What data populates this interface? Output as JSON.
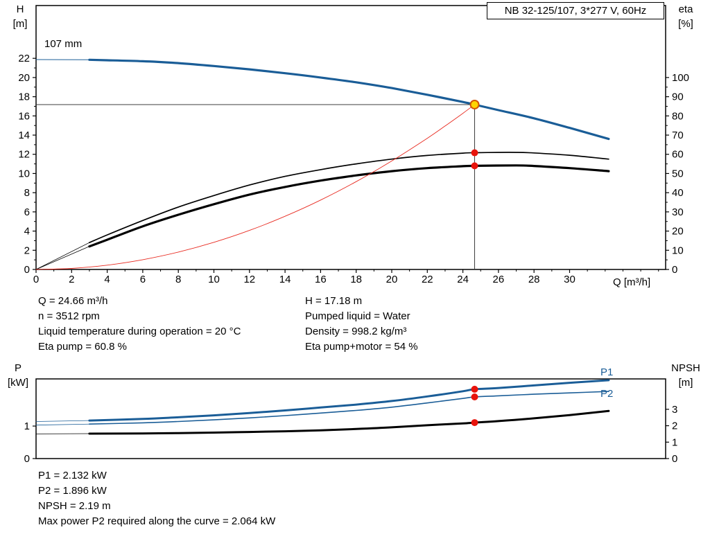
{
  "header": {
    "title_box": "NB 32-125/107, 3*277 V, 60Hz"
  },
  "labels": {
    "top_left_1": "H",
    "top_left_2": "[m]",
    "top_right_1": "eta",
    "top_right_2": "[%]",
    "x_axis": "Q [m³/h]",
    "curve_size": "107 mm",
    "bottom_left_1": "P",
    "bottom_left_2": "[kW]",
    "bottom_right_1": "NPSH",
    "bottom_right_2": "[m]",
    "p1": "P1",
    "p2": "P2"
  },
  "info": {
    "left": [
      "Q = 24.66 m³/h",
      "n = 3512 rpm",
      "Liquid temperature during operation = 20 °C",
      "Eta pump = 60.8 %"
    ],
    "right": [
      "H = 17.18 m",
      "Pumped liquid = Water",
      "Density = 998.2 kg/m³",
      "Eta pump+motor = 54 %"
    ]
  },
  "footer": {
    "lines": [
      "P1 = 2.132 kW",
      "P2 = 1.896 kW",
      "NPSH = 2.19 m",
      "Max power P2 required along the curve = 2.064 kW"
    ]
  },
  "colors": {
    "blue": "#1a5d97",
    "black": "#000000",
    "red": "#e8291f",
    "dot_red": "#e8140c",
    "duty_fill": "#ffd500",
    "duty_stroke": "#d35400",
    "crosshair": "#3c3c3c"
  },
  "chart_data": [
    {
      "type": "line",
      "title": "NB 32-125/107, 3*277 V, 60Hz",
      "xlabel": "Q [m³/h]",
      "ylabel_left": "H [m]",
      "ylabel_right": "eta [%]",
      "xlim": [
        0,
        35.4
      ],
      "x_ticks": [
        0,
        2,
        4,
        6,
        8,
        10,
        12,
        14,
        16,
        18,
        20,
        22,
        24,
        26,
        28,
        30
      ],
      "x_minor_step": 1,
      "ylim_left": [
        0,
        27.5
      ],
      "y_ticks_left": [
        0,
        2,
        4,
        6,
        8,
        10,
        12,
        14,
        16,
        18,
        20,
        22
      ],
      "y_left_minor_step": 1,
      "ylim_right": [
        0,
        137.5
      ],
      "y_ticks_right": [
        0,
        10,
        20,
        30,
        40,
        50,
        60,
        70,
        80,
        90,
        100
      ],
      "y_right_minor_step": 5,
      "duty": {
        "q": 24.66,
        "h": 17.18
      },
      "series": [
        {
          "name": "qh-107mm-lead",
          "axis": "left",
          "color": "blue",
          "width": 1,
          "points": [
            [
              0,
              21.87
            ],
            [
              3,
              21.85
            ]
          ]
        },
        {
          "name": "qh-107mm",
          "axis": "left",
          "color": "blue",
          "width": 3.2,
          "points": [
            [
              3,
              21.85
            ],
            [
              4,
              21.8
            ],
            [
              6,
              21.7
            ],
            [
              8,
              21.5
            ],
            [
              10,
              21.2
            ],
            [
              12,
              20.85
            ],
            [
              14,
              20.45
            ],
            [
              16,
              20.0
            ],
            [
              18,
              19.5
            ],
            [
              20,
              18.9
            ],
            [
              22,
              18.2
            ],
            [
              24,
              17.45
            ],
            [
              24.66,
              17.18
            ],
            [
              26,
              16.6
            ],
            [
              28,
              15.75
            ],
            [
              30,
              14.75
            ],
            [
              32.2,
              13.6
            ]
          ]
        },
        {
          "name": "eta-pump-lead",
          "axis": "right",
          "color": "black",
          "width": 0.8,
          "points": [
            [
              0,
              0
            ],
            [
              3,
              14
            ]
          ]
        },
        {
          "name": "eta-pump",
          "axis": "right",
          "color": "black",
          "width": 1.7,
          "points": [
            [
              3,
              14
            ],
            [
              4,
              18
            ],
            [
              6,
              25.5
            ],
            [
              8,
              32.5
            ],
            [
              10,
              38.5
            ],
            [
              12,
              44
            ],
            [
              14,
              48.5
            ],
            [
              16,
              52
            ],
            [
              18,
              55
            ],
            [
              20,
              57.5
            ],
            [
              22,
              59.4
            ],
            [
              24,
              60.6
            ],
            [
              24.66,
              60.8
            ],
            [
              26,
              61
            ],
            [
              27,
              61
            ],
            [
              28,
              60.7
            ],
            [
              30,
              59.5
            ],
            [
              32.2,
              57.5
            ]
          ]
        },
        {
          "name": "eta-pump-motor-lead",
          "axis": "right",
          "color": "black",
          "width": 0.8,
          "points": [
            [
              0,
              0
            ],
            [
              3,
              12
            ]
          ]
        },
        {
          "name": "eta-pump-motor",
          "axis": "right",
          "color": "black",
          "width": 3.2,
          "points": [
            [
              3,
              12
            ],
            [
              4,
              15.5
            ],
            [
              6,
              22.5
            ],
            [
              8,
              28.5
            ],
            [
              10,
              34
            ],
            [
              12,
              39
            ],
            [
              14,
              43
            ],
            [
              16,
              46.3
            ],
            [
              18,
              49
            ],
            [
              20,
              51.2
            ],
            [
              22,
              52.8
            ],
            [
              24,
              53.8
            ],
            [
              24.66,
              54
            ],
            [
              27,
              54.2
            ],
            [
              28,
              53.9
            ],
            [
              30,
              52.8
            ],
            [
              32.2,
              51.2
            ]
          ]
        },
        {
          "name": "system-curve",
          "axis": "left",
          "color": "red",
          "width": 0.9,
          "points": [
            [
              0,
              0
            ],
            [
              2,
              0.11
            ],
            [
              4,
              0.45
            ],
            [
              6,
              1.02
            ],
            [
              8,
              1.81
            ],
            [
              10,
              2.83
            ],
            [
              12,
              4.07
            ],
            [
              14,
              5.54
            ],
            [
              16,
              7.23
            ],
            [
              18,
              9.15
            ],
            [
              20,
              11.3
            ],
            [
              22,
              13.67
            ],
            [
              23,
              14.95
            ],
            [
              24,
              16.27
            ],
            [
              24.66,
              17.18
            ]
          ]
        }
      ],
      "markers": [
        {
          "name": "duty-point",
          "axis": "left",
          "style": "duty",
          "x": 24.66,
          "y": 17.18
        },
        {
          "name": "eta-pump-op",
          "axis": "right",
          "style": "dot",
          "x": 24.66,
          "y": 60.8
        },
        {
          "name": "eta-pump-motor-op",
          "axis": "right",
          "style": "dot",
          "x": 24.66,
          "y": 54
        }
      ]
    },
    {
      "type": "line",
      "xlabel": "",
      "ylabel_left": "P [kW]",
      "ylabel_right": "NPSH [m]",
      "xlim": [
        0,
        35.4
      ],
      "x_ticks": [],
      "ylim_left": [
        0,
        2.45
      ],
      "y_ticks_left": [
        0,
        1
      ],
      "ylim_right": [
        0,
        4.85
      ],
      "y_ticks_right": [
        0,
        1,
        2,
        3
      ],
      "series": [
        {
          "name": "p1-lead",
          "axis": "left",
          "color": "blue",
          "width": 0.8,
          "points": [
            [
              0,
              1.14
            ],
            [
              3,
              1.17
            ]
          ]
        },
        {
          "name": "p1",
          "axis": "left",
          "color": "blue",
          "width": 3,
          "points": [
            [
              3,
              1.17
            ],
            [
              6,
              1.22
            ],
            [
              8,
              1.27
            ],
            [
              10,
              1.33
            ],
            [
              12,
              1.4
            ],
            [
              14,
              1.48
            ],
            [
              16,
              1.57
            ],
            [
              18,
              1.66
            ],
            [
              20,
              1.77
            ],
            [
              22,
              1.91
            ],
            [
              24,
              2.07
            ],
            [
              24.66,
              2.132
            ],
            [
              26,
              2.17
            ],
            [
              28,
              2.25
            ],
            [
              30,
              2.33
            ],
            [
              32.2,
              2.41
            ]
          ]
        },
        {
          "name": "p2-lead",
          "axis": "left",
          "color": "blue",
          "width": 0.8,
          "points": [
            [
              0,
              1.03
            ],
            [
              3,
              1.06
            ]
          ]
        },
        {
          "name": "p2",
          "axis": "left",
          "color": "blue",
          "width": 1.6,
          "points": [
            [
              3,
              1.06
            ],
            [
              6,
              1.1
            ],
            [
              8,
              1.14
            ],
            [
              10,
              1.19
            ],
            [
              12,
              1.25
            ],
            [
              14,
              1.32
            ],
            [
              16,
              1.4
            ],
            [
              18,
              1.48
            ],
            [
              20,
              1.58
            ],
            [
              22,
              1.71
            ],
            [
              24,
              1.85
            ],
            [
              24.66,
              1.896
            ],
            [
              26,
              1.93
            ],
            [
              28,
              1.98
            ],
            [
              30,
              2.02
            ],
            [
              32.2,
              2.064
            ]
          ]
        },
        {
          "name": "npsh-lead",
          "axis": "right",
          "color": "black",
          "width": 0.8,
          "points": [
            [
              0,
              1.5
            ],
            [
              3,
              1.52
            ]
          ]
        },
        {
          "name": "npsh",
          "axis": "right",
          "color": "black",
          "width": 3,
          "points": [
            [
              3,
              1.52
            ],
            [
              6,
              1.53
            ],
            [
              8,
              1.55
            ],
            [
              10,
              1.58
            ],
            [
              12,
              1.62
            ],
            [
              14,
              1.66
            ],
            [
              16,
              1.72
            ],
            [
              18,
              1.8
            ],
            [
              20,
              1.9
            ],
            [
              22,
              2.03
            ],
            [
              24,
              2.14
            ],
            [
              24.66,
              2.19
            ],
            [
              26,
              2.28
            ],
            [
              28,
              2.45
            ],
            [
              30,
              2.65
            ],
            [
              32.2,
              2.9
            ]
          ]
        }
      ],
      "markers": [
        {
          "name": "p1-op",
          "axis": "left",
          "style": "dot",
          "x": 24.66,
          "y": 2.132
        },
        {
          "name": "p2-op",
          "axis": "left",
          "style": "dot",
          "x": 24.66,
          "y": 1.896
        },
        {
          "name": "npsh-op",
          "axis": "right",
          "style": "dot",
          "x": 24.66,
          "y": 2.19
        }
      ]
    }
  ]
}
